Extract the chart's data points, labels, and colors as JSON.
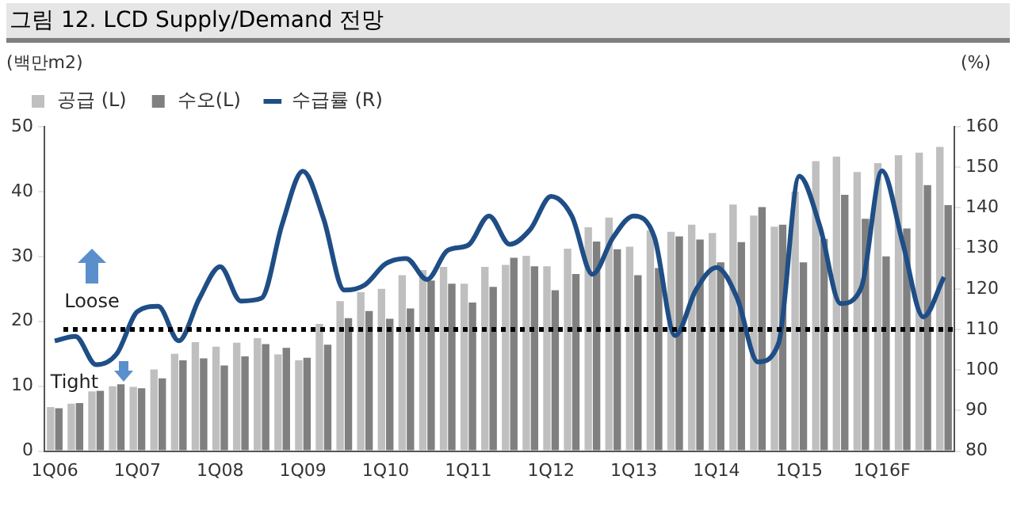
{
  "chart_data": {
    "type": "bar",
    "title": "그림 12. LCD Supply/Demand 전망",
    "ylabel": "(백만m2)",
    "y2label": "(%)",
    "categories": [
      "1Q06",
      null,
      null,
      null,
      "1Q07",
      null,
      null,
      null,
      "1Q08",
      null,
      null,
      null,
      "1Q09",
      null,
      null,
      null,
      "1Q10",
      null,
      null,
      null,
      "1Q11",
      null,
      null,
      null,
      "1Q12",
      null,
      null,
      null,
      "1Q13",
      null,
      null,
      null,
      "1Q14",
      null,
      null,
      null,
      "1Q15",
      null,
      null,
      null,
      "1Q16F",
      null,
      null,
      null
    ],
    "series": [
      {
        "name": "공급 (L)",
        "color": "#bfbfbf",
        "values": [
          6.8,
          7.3,
          9.2,
          10,
          9.9,
          12.6,
          15,
          16.8,
          16.1,
          16.7,
          17.4,
          14.9,
          14,
          19.6,
          23.1,
          24.5,
          25,
          27.1,
          27.9,
          28.4,
          25.8,
          28.4,
          28.7,
          30.1,
          28.5,
          31.2,
          34.5,
          36,
          31.5,
          34,
          33.8,
          34.9,
          33.6,
          38,
          36.3,
          34.6,
          40,
          44.7,
          45.4,
          43,
          44.4,
          45.6,
          46,
          46.9
        ]
      },
      {
        "name": "수오(L)",
        "color": "#808080",
        "values": [
          6.6,
          7.4,
          9.3,
          10.3,
          9.7,
          11.2,
          14,
          14.3,
          13.2,
          14.6,
          16.5,
          15.9,
          14.4,
          16.4,
          20.5,
          21.6,
          20.4,
          22,
          26.3,
          25.8,
          22.9,
          25.3,
          29.8,
          28.5,
          24.8,
          27.3,
          32.3,
          31.1,
          27.1,
          28.2,
          33.1,
          32.6,
          29.1,
          32.2,
          37.6,
          34.9,
          29.1,
          32.7,
          39.5,
          35.8,
          30,
          34.3,
          41,
          37.9
        ]
      },
      {
        "name": "수급률 (R)",
        "type": "line",
        "axis": "y2",
        "color": "#1f4e86",
        "values": [
          107.2,
          108.3,
          101.3,
          104,
          114.4,
          115.7,
          107.2,
          117.7,
          125.5,
          117,
          117.7,
          136,
          149,
          137.3,
          119.7,
          121,
          126.2,
          127.5,
          122.3,
          129.5,
          130.8,
          138,
          131,
          134.7,
          142.8,
          138,
          123.6,
          132.7,
          138,
          132.7,
          108.5,
          119.7,
          125.3,
          117.7,
          102,
          106.6,
          147.8,
          135.4,
          116.4,
          120.3,
          149.1,
          131.4,
          113.1,
          122.9
        ]
      }
    ],
    "ylim": [
      0,
      50
    ],
    "yticks": [
      0,
      10,
      20,
      30,
      40,
      50
    ],
    "y2lim": [
      80,
      160
    ],
    "y2ticks": [
      80,
      90,
      100,
      110,
      120,
      130,
      140,
      150,
      160
    ],
    "ref_lines": [
      {
        "axis": "y2",
        "value": 110,
        "color": "#000000",
        "line_style": "dotted"
      }
    ],
    "annotations": [
      "Loose",
      "Tight"
    ],
    "legend": "top left",
    "marker": "none",
    "line_style": "solid"
  }
}
